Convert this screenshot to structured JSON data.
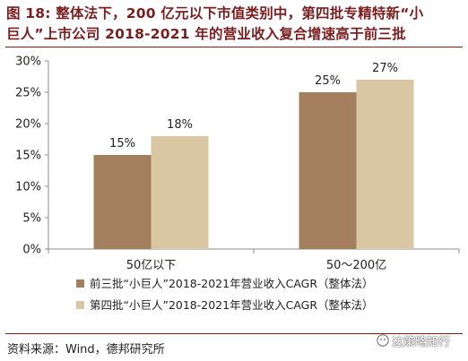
{
  "title": {
    "line1": "图 18: 整体法下，200 亿元以下市值类别中，第四批专精特新“小",
    "line2": "巨人”上市公司 2018-2021 年的营业收入复合增速高于前三批"
  },
  "chart_data": {
    "type": "bar",
    "categories": [
      "50亿以下",
      "50～200亿"
    ],
    "series": [
      {
        "name": "前三批“小巨人”2018-2021年营业收入CAGR（整体法）",
        "values": [
          15,
          25
        ],
        "labels": [
          "15%",
          "25%"
        ],
        "color": "#a47f5e"
      },
      {
        "name": "第四批“小巨人”2018-2021年营业收入CAGR（整体法）",
        "values": [
          18,
          27
        ],
        "labels": [
          "18%",
          "27%"
        ],
        "color": "#d9c7a3"
      }
    ],
    "ylim": [
      0,
      30
    ],
    "yticks": [
      0,
      5,
      10,
      15,
      20,
      25,
      30
    ],
    "ytick_labels": [
      "0%",
      "5%",
      "10%",
      "15%",
      "20%",
      "25%",
      "30%"
    ],
    "grid": false,
    "legend": "bottom-left"
  },
  "source": "资料来源：Wind，德邦研究所",
  "watermark": "达策略知行",
  "colors": {
    "title": "#7a1f1f",
    "axis": "#8c8c8c"
  }
}
